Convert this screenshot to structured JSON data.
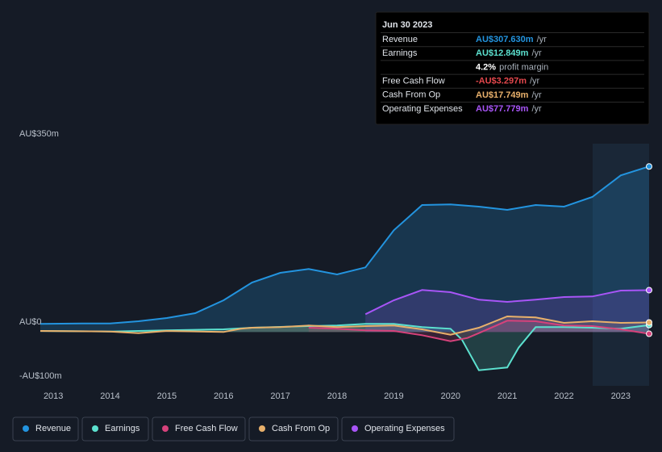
{
  "chart_data": {
    "type": "line",
    "xlim": [
      2012.77,
      2023.5
    ],
    "xticks": [
      2013,
      2014,
      2015,
      2016,
      2017,
      2018,
      2019,
      2020,
      2021,
      2022,
      2023
    ],
    "ylim": [
      -100,
      350
    ],
    "yticks": [
      {
        "value": -100,
        "label": "-AU$100m"
      },
      {
        "value": 0,
        "label": "AU$0"
      },
      {
        "value": 350,
        "label": "AU$350m"
      }
    ],
    "grid": true,
    "series": [
      {
        "name": "Revenue",
        "color": "#2394df",
        "x": [
          2012.77,
          2013.5,
          2014,
          2014.5,
          2015,
          2015.5,
          2016,
          2016.5,
          2017,
          2017.5,
          2018,
          2018.5,
          2019,
          2019.5,
          2020,
          2020.5,
          2021,
          2021.5,
          2022,
          2022.5,
          2023,
          2023.5
        ],
        "values": [
          15,
          16,
          16,
          20,
          26,
          35,
          59,
          92,
          110,
          117,
          107,
          120,
          189,
          236,
          237,
          233,
          227,
          236,
          233,
          251,
          291,
          307.63
        ]
      },
      {
        "name": "Earnings",
        "color": "#5ce1cf",
        "x": [
          2012.77,
          2014,
          2015,
          2016,
          2016.5,
          2017.5,
          2018,
          2018.5,
          2019,
          2019.5,
          2020,
          2020.2,
          2020.5,
          2021,
          2021.2,
          2021.5,
          2022,
          2022.5,
          2023,
          2023.5
        ],
        "values": [
          2,
          1,
          3,
          5,
          8,
          11,
          12,
          15,
          15,
          9,
          6,
          -14,
          -71,
          -66,
          -29,
          9,
          9,
          8,
          6,
          12.849
        ]
      },
      {
        "name": "Free Cash Flow",
        "color": "#d6427b",
        "x": [
          2017.5,
          2018,
          2018.5,
          2019,
          2019.5,
          2020,
          2020.3,
          2020.5,
          2021,
          2021.5,
          2022,
          2022.5,
          2023,
          2023.5
        ],
        "values": [
          8,
          6,
          3,
          2,
          -6,
          -17,
          -11,
          -2,
          21,
          20,
          12,
          11,
          5,
          -3.297
        ]
      },
      {
        "name": "Cash From Op",
        "color": "#e8b06b",
        "x": [
          2012.77,
          2014,
          2014.5,
          2015,
          2016,
          2016.3,
          2016.5,
          2017,
          2017.5,
          2018,
          2018.5,
          2019,
          2019.5,
          2020,
          2020.5,
          2021,
          2021.5,
          2022,
          2022.5,
          2023,
          2023.5
        ],
        "values": [
          2,
          1,
          -2,
          2,
          0,
          6,
          8,
          9,
          12,
          9,
          11,
          12,
          5,
          -5,
          8,
          29,
          27,
          17,
          20,
          17,
          17.749
        ]
      },
      {
        "name": "Operating Expenses",
        "color": "#a855f7",
        "x": [
          2018.5,
          2019,
          2019.5,
          2020,
          2020.5,
          2021,
          2021.5,
          2022,
          2022.5,
          2023,
          2023.5
        ],
        "values": [
          33,
          59,
          78,
          74,
          60,
          56,
          60,
          65,
          66,
          77,
          77.779
        ]
      }
    ],
    "tooltip": {
      "date": "Jun 30 2023",
      "rows": [
        {
          "label": "Revenue",
          "value": "AU$307.630m",
          "unit": "/yr",
          "color": "#2394df"
        },
        {
          "label": "Earnings",
          "value": "AU$12.849m",
          "unit": "/yr",
          "color": "#5ce1cf"
        },
        {
          "value": "4.2%",
          "unit": "profit margin",
          "color": "#ffffff"
        },
        {
          "label": "Free Cash Flow",
          "value": "-AU$3.297m",
          "unit": "/yr",
          "color": "#e5484d"
        },
        {
          "label": "Cash From Op",
          "value": "AU$17.749m",
          "unit": "/yr",
          "color": "#e8b06b"
        },
        {
          "label": "Operating Expenses",
          "value": "AU$77.779m",
          "unit": "/yr",
          "color": "#a855f7"
        }
      ]
    }
  }
}
